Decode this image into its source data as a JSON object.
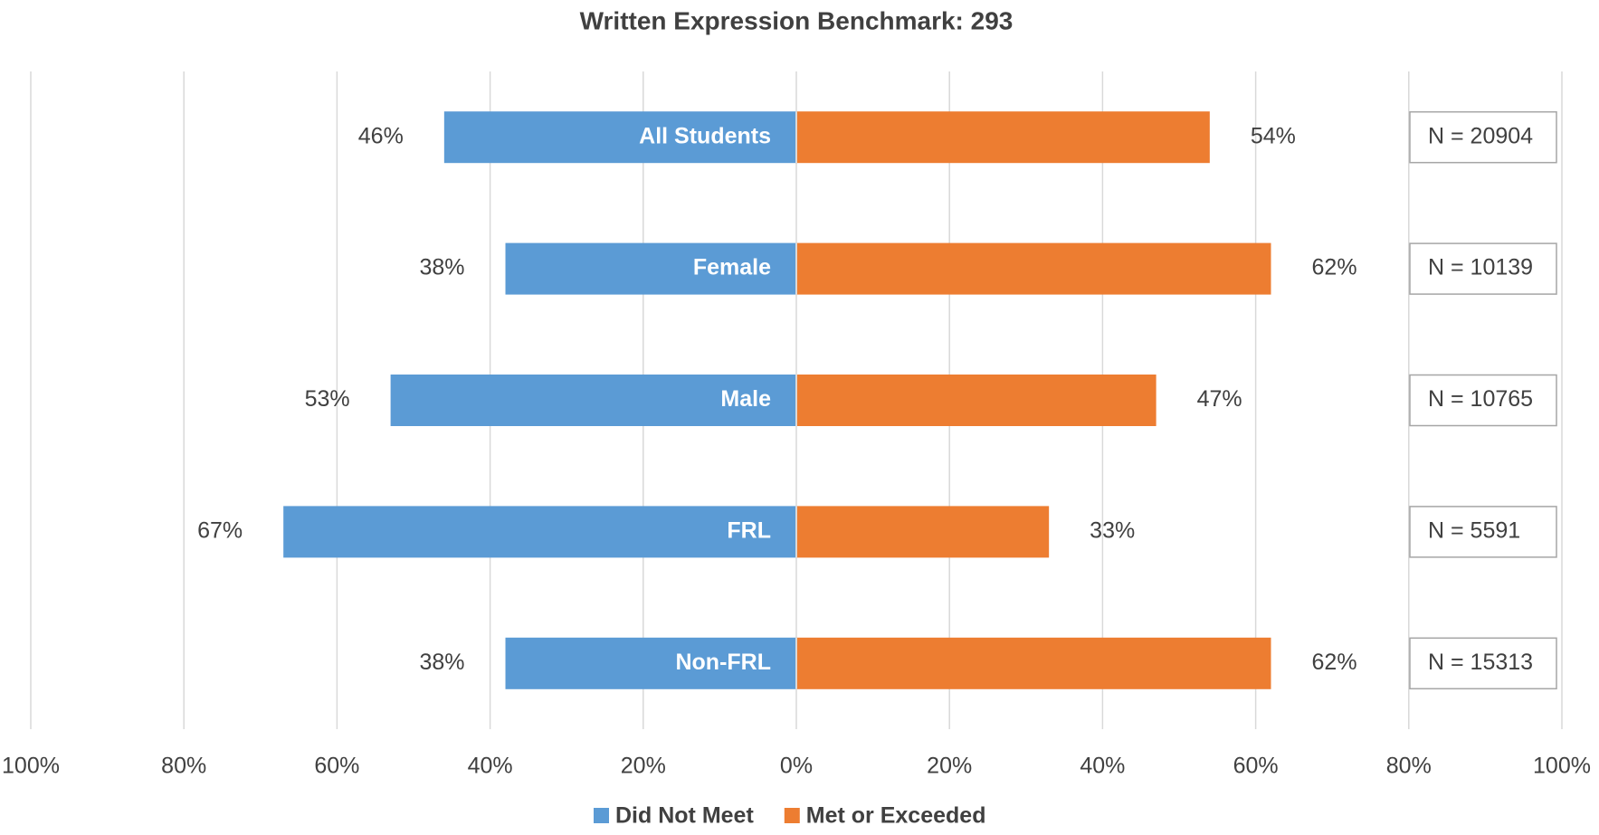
{
  "chart_data": {
    "type": "diverging_bar",
    "title": "Written Expression Benchmark: 293",
    "categories": [
      "All Students",
      "Female",
      "Male",
      "FRL",
      "Non-FRL"
    ],
    "series": [
      {
        "name": "Did Not Meet",
        "color": "#5b9bd5",
        "values": [
          -46,
          -38,
          -53,
          -67,
          -38
        ],
        "value_labels": [
          "46%",
          "38%",
          "53%",
          "67%",
          "38%"
        ]
      },
      {
        "name": "Met or Exceeded",
        "color": "#ed7d31",
        "values": [
          54,
          62,
          47,
          33,
          62
        ],
        "value_labels": [
          "54%",
          "62%",
          "47%",
          "33%",
          "62%"
        ]
      }
    ],
    "annotations": [
      "N = 20904",
      "N = 10139",
      "N = 10765",
      "N = 5591",
      "N = 15313"
    ],
    "xlim": [
      -100,
      100
    ],
    "xticks": [
      {
        "value": -100,
        "label": "100%"
      },
      {
        "value": -80,
        "label": "80%"
      },
      {
        "value": -60,
        "label": "60%"
      },
      {
        "value": -40,
        "label": "40%"
      },
      {
        "value": -20,
        "label": "20%"
      },
      {
        "value": 0,
        "label": "0%"
      },
      {
        "value": 20,
        "label": "20%"
      },
      {
        "value": 40,
        "label": "40%"
      },
      {
        "value": 60,
        "label": "60%"
      },
      {
        "value": 80,
        "label": "80%"
      },
      {
        "value": 100,
        "label": "100%"
      }
    ],
    "grid": true,
    "legend": "bottom"
  }
}
